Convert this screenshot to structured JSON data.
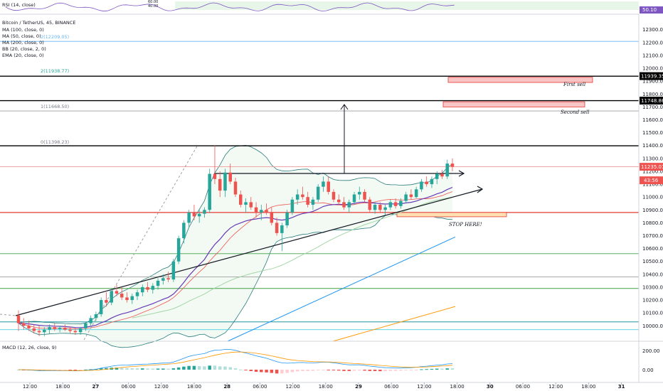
{
  "rsi_pane": {
    "title": "RSI (14, close)",
    "value_label": "50.10",
    "top_labels": [
      "60.00",
      "40.00"
    ]
  },
  "main_pane": {
    "legend": [
      "Bitcoin / TetherUS, 45, BINANCE",
      "MA (100, close, 0)",
      "MA (50, close, 0)",
      "MA (200, close, 0)",
      "BB (20, close, 2, 0)",
      "EMA (20, close, 0)"
    ],
    "fib_levels": [
      {
        "label": "2(11938.77)",
        "price": 11938.77
      },
      {
        "label": "1(11668.50)",
        "price": 11668.5
      },
      {
        "label": "0(11398.23)",
        "price": 11398.23
      }
    ],
    "ma_value_note": "2(12209.05)",
    "price_badges": [
      {
        "label": "11939.35",
        "price": 11939.35,
        "color": "#000000"
      },
      {
        "label": "11748.86",
        "price": 11748.86,
        "color": "#000000"
      },
      {
        "label": "11235.01",
        "price": 11235.01,
        "color": "#ef5350"
      },
      {
        "label": "43:56",
        "price": 11130,
        "color": "#ef5350"
      }
    ],
    "annotations": [
      {
        "text": "First sell"
      },
      {
        "text": "Second sell"
      },
      {
        "text": "STOP HERE!"
      }
    ],
    "colors": {
      "up": "#26a69a",
      "down": "#ef5350",
      "ma_blue": "#2196f3",
      "ma_orange": "#ff9800",
      "ema_purple": "#673ab7",
      "bb": "#2a7d7d",
      "zone_red": "#f8c5c5"
    }
  },
  "macd_pane": {
    "title": "MACD (12, 26, close, 9)",
    "ticks": [
      "200.00",
      "0.00"
    ]
  },
  "chart_data": {
    "type": "candlestick",
    "title": "Bitcoin / TetherUS, 45, BINANCE",
    "y_axis": {
      "ticks": [
        12300,
        12200,
        12100,
        12000,
        11900,
        11800,
        11700,
        11600,
        11500,
        11400,
        11300,
        11200,
        11100,
        11000,
        10900,
        10800,
        10700,
        10600,
        10500,
        10400,
        10300,
        10200,
        10100,
        10000
      ],
      "tick_labels": [
        "12300.00",
        "12200.00",
        "12100.00",
        "12000.00",
        "11900.00",
        "11800.00",
        "11700.00",
        "11600.00",
        "11500.00",
        "11400.00",
        "11300.00",
        "11200.00",
        "11100.00",
        "11000.00",
        "10900.00",
        "10800.00",
        "10700.00",
        "10600.00",
        "10500.00",
        "10400.00",
        "10300.00",
        "10200.00",
        "10100.00",
        "10000.00"
      ],
      "range": [
        9880,
        12420
      ]
    },
    "x_axis": {
      "tick_labels": [
        "12:00",
        "18:00",
        "27",
        "06:00",
        "12:00",
        "18:00",
        "28",
        "06:00",
        "12:00",
        "18:00",
        "29",
        "06:00",
        "12:00",
        "18:00",
        "30",
        "06:00",
        "12:00",
        "18:00",
        "31"
      ]
    },
    "horizontal_levels": [
      {
        "price": 12209.05,
        "color": "#64b5f6"
      },
      {
        "price": 11938.77,
        "color": "#000000"
      },
      {
        "price": 11748.86,
        "color": "#000000"
      },
      {
        "price": 11668.5,
        "color": "#9e9e9e"
      },
      {
        "price": 11398.23,
        "color": "#000000"
      },
      {
        "price": 11235.01,
        "color": "#ef9a9a"
      },
      {
        "price": 10880,
        "color": "#e53935"
      },
      {
        "price": 10560,
        "color": "#43a047"
      },
      {
        "price": 10380,
        "color": "#9e9e9e"
      },
      {
        "price": 10290,
        "color": "#43a047"
      },
      {
        "price": 10030,
        "color": "#00838f"
      },
      {
        "price": 9970,
        "color": "#4dd0e1"
      }
    ],
    "zones": [
      {
        "name": "First sell",
        "price_top": 11930,
        "price_bottom": 11890,
        "x_start": "28 18:00+",
        "x_end": "30 18:00-"
      },
      {
        "name": "Second sell",
        "price_top": 11740,
        "price_bottom": 11700,
        "x_start": "29 12:00+",
        "x_end": "30 18:00-"
      },
      {
        "name": "STOP HERE!",
        "price_top": 10880,
        "price_bottom": 10850,
        "x_start": "29 06:00",
        "x_end": "29 18:00+"
      }
    ],
    "candles": [
      [
        10080,
        10120,
        9960,
        10020
      ],
      [
        10020,
        10060,
        9970,
        10000
      ],
      [
        10000,
        10040,
        9960,
        9980
      ],
      [
        9980,
        10010,
        9940,
        9960
      ],
      [
        9960,
        10000,
        9920,
        9950
      ],
      [
        9950,
        9990,
        9920,
        9970
      ],
      [
        9970,
        10010,
        9940,
        9990
      ],
      [
        9990,
        10020,
        9960,
        9975
      ],
      [
        9975,
        10000,
        9950,
        9985
      ],
      [
        9985,
        10010,
        9960,
        9970
      ],
      [
        9970,
        9995,
        9940,
        9960
      ],
      [
        9960,
        9985,
        9930,
        9950
      ],
      [
        9950,
        9990,
        9930,
        9980
      ],
      [
        9980,
        10030,
        9960,
        10020
      ],
      [
        10020,
        10080,
        10000,
        10060
      ],
      [
        10060,
        10110,
        10040,
        10090
      ],
      [
        10090,
        10220,
        10070,
        10200
      ],
      [
        10200,
        10260,
        10150,
        10180
      ],
      [
        10180,
        10290,
        10160,
        10270
      ],
      [
        10270,
        10320,
        10230,
        10250
      ],
      [
        10250,
        10300,
        10200,
        10220
      ],
      [
        10220,
        10260,
        10180,
        10200
      ],
      [
        10200,
        10250,
        10170,
        10230
      ],
      [
        10230,
        10280,
        10200,
        10260
      ],
      [
        10260,
        10320,
        10230,
        10300
      ],
      [
        10300,
        10340,
        10260,
        10280
      ],
      [
        10280,
        10330,
        10250,
        10310
      ],
      [
        10310,
        10370,
        10280,
        10350
      ],
      [
        10350,
        10400,
        10320,
        10370
      ],
      [
        10370,
        10420,
        10340,
        10360
      ],
      [
        10360,
        10520,
        10340,
        10500
      ],
      [
        10500,
        10700,
        10480,
        10680
      ],
      [
        10680,
        10820,
        10640,
        10800
      ],
      [
        10800,
        10900,
        10760,
        10880
      ],
      [
        10880,
        10940,
        10820,
        10850
      ],
      [
        10850,
        10900,
        10800,
        10870
      ],
      [
        10870,
        10920,
        10840,
        10900
      ],
      [
        10900,
        11220,
        10880,
        11180
      ],
      [
        11180,
        11400,
        11100,
        11140
      ],
      [
        11140,
        11200,
        11000,
        11050
      ],
      [
        11050,
        11220,
        11000,
        11190
      ],
      [
        11190,
        11260,
        11100,
        11120
      ],
      [
        11120,
        11150,
        11000,
        11020
      ],
      [
        11020,
        11050,
        10920,
        10940
      ],
      [
        10940,
        10990,
        10880,
        10960
      ],
      [
        10960,
        11000,
        10900,
        10920
      ],
      [
        10920,
        10960,
        10840,
        10880
      ],
      [
        10880,
        10940,
        10820,
        10900
      ],
      [
        10900,
        10950,
        10860,
        10880
      ],
      [
        10880,
        10920,
        10780,
        10800
      ],
      [
        10800,
        10840,
        10700,
        10720
      ],
      [
        10720,
        10800,
        10580,
        10780
      ],
      [
        10780,
        10900,
        10760,
        10880
      ],
      [
        10880,
        11000,
        10860,
        10980
      ],
      [
        10980,
        11060,
        10940,
        11020
      ],
      [
        11020,
        11080,
        10980,
        11000
      ],
      [
        11000,
        11040,
        10920,
        10940
      ],
      [
        10940,
        11000,
        10900,
        10980
      ],
      [
        10980,
        11100,
        10960,
        11080
      ],
      [
        11080,
        11160,
        11040,
        11120
      ],
      [
        11120,
        11160,
        11020,
        11040
      ],
      [
        11040,
        11060,
        10960,
        10980
      ],
      [
        10980,
        11020,
        10940,
        10960
      ],
      [
        10960,
        11000,
        10900,
        10920
      ],
      [
        10920,
        10980,
        10880,
        10960
      ],
      [
        10960,
        11040,
        10940,
        11020
      ],
      [
        11020,
        11080,
        10980,
        11040
      ],
      [
        11040,
        11060,
        10960,
        10980
      ],
      [
        10980,
        11000,
        10880,
        10900
      ],
      [
        10900,
        10960,
        10870,
        10940
      ],
      [
        10940,
        10960,
        10880,
        10900
      ],
      [
        10900,
        10940,
        10860,
        10920
      ],
      [
        10920,
        10980,
        10900,
        10960
      ],
      [
        10960,
        10990,
        10910,
        10930
      ],
      [
        10930,
        10990,
        10910,
        10970
      ],
      [
        10970,
        11040,
        10950,
        11020
      ],
      [
        11020,
        11060,
        10980,
        11000
      ],
      [
        11000,
        11080,
        10990,
        11060
      ],
      [
        11060,
        11140,
        11040,
        11120
      ],
      [
        11120,
        11160,
        11080,
        11100
      ],
      [
        11100,
        11160,
        11070,
        11140
      ],
      [
        11140,
        11200,
        11100,
        11180
      ],
      [
        11180,
        11210,
        11140,
        11160
      ],
      [
        11160,
        11290,
        11140,
        11260
      ],
      [
        11260,
        11300,
        11200,
        11235
      ]
    ]
  }
}
